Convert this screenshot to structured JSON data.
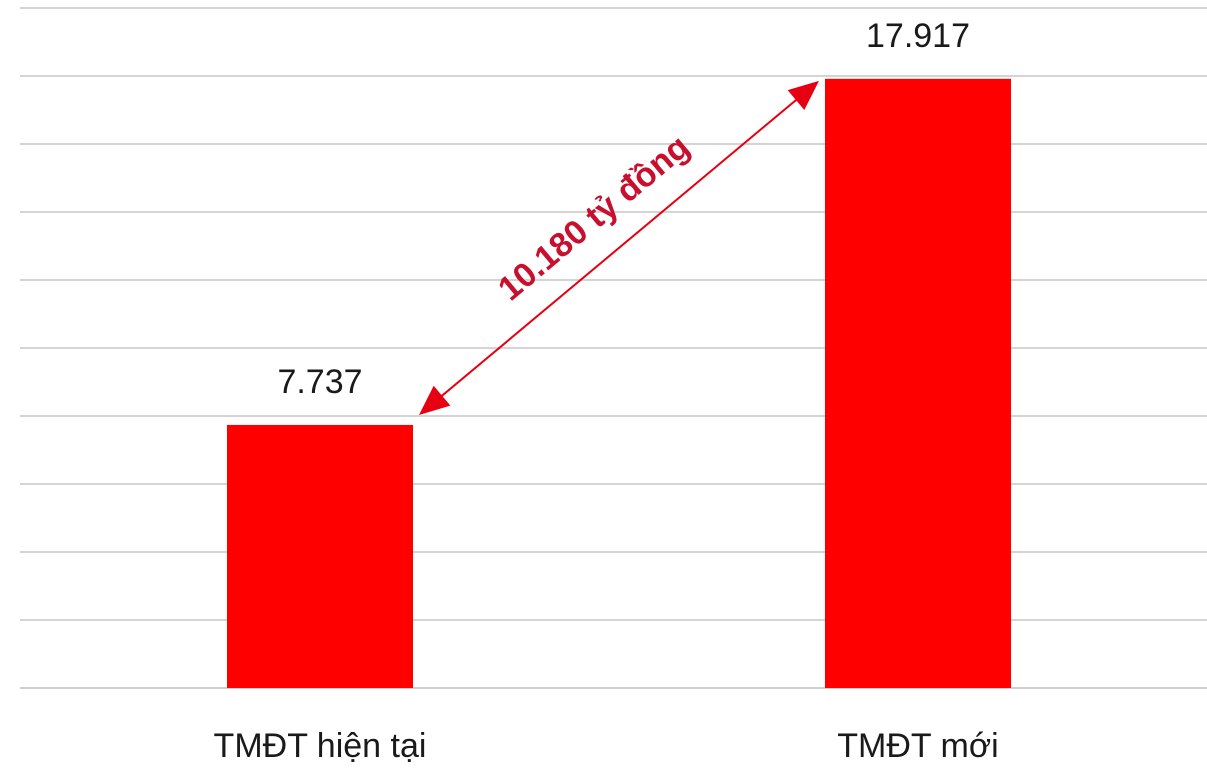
{
  "chart_data": {
    "type": "bar",
    "categories": [
      "TMĐT hiện tại",
      "TMĐT mới"
    ],
    "values": [
      7737,
      17917
    ],
    "value_labels": [
      "7.737",
      "17.917"
    ],
    "ylim": [
      0,
      20000
    ],
    "grid": true,
    "bar_color": "#ff0000",
    "annotation": {
      "text": "10.180 tỷ đồng",
      "from_category": "TMĐT hiện tại",
      "to_category": "TMĐT mới",
      "color": "#e60012"
    }
  }
}
